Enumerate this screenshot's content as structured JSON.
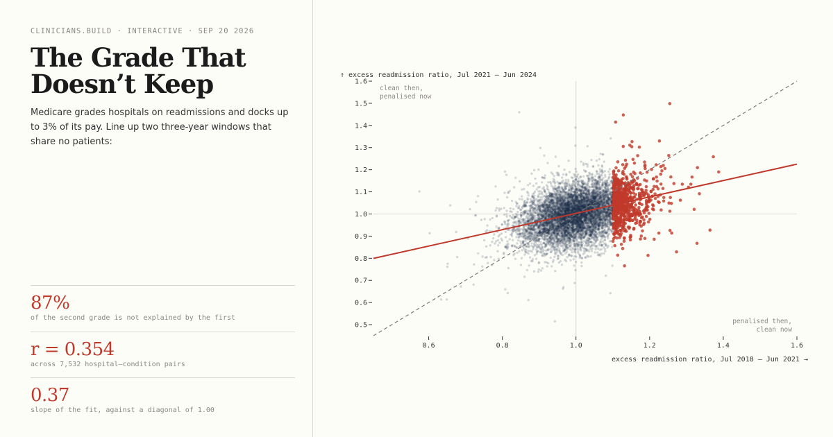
{
  "header": {
    "kicker": "CLINICIANS.BUILD · INTERACTIVE · SEP 20 2026",
    "title": "The Grade That Doesn’t Keep",
    "dek": "Medicare grades hospitals on readmissions and docks up to 3% of its pay. Line up two three-year windows that share no patients:"
  },
  "stats": [
    {
      "value": "87%",
      "caption": "of the second grade is not explained by the first"
    },
    {
      "value": "r = 0.354",
      "caption": "across 7,532 hospital–condition pairs"
    },
    {
      "value": "0.37",
      "caption": "slope of the fit, against a diagonal of 1.00"
    }
  ],
  "colors": {
    "accent": "#c0392b",
    "points": "#1c2e4a",
    "penalised": "#c0392b",
    "background": "#fdfdf7"
  },
  "chart_data": {
    "type": "scatter",
    "xlabel": "excess readmission ratio, Jul 2018 – Jun 2021 →",
    "ylabel": "↑ excess readmission ratio, Jul 2021 – Jun 2024",
    "xlim": [
      0.45,
      1.6
    ],
    "ylim": [
      0.45,
      1.6
    ],
    "xticks": [
      "0.6",
      "0.8",
      "1.0",
      "1.2",
      "1.4",
      "1.6"
    ],
    "yticks": [
      "0.5",
      "0.6",
      "0.7",
      "0.8",
      "0.9",
      "1.0",
      "1.1",
      "1.2",
      "1.3",
      "1.4",
      "1.5",
      "1.6"
    ],
    "n_points": 7532,
    "correlation": 0.354,
    "penalty_threshold_x": 1.1,
    "fit": {
      "slope": 0.37,
      "intercept": 0.633
    },
    "diagonal": {
      "slope": 1.0,
      "intercept": 0.0
    },
    "reference_lines": {
      "x": 1.0,
      "y": 1.0
    },
    "annotations": [
      {
        "text_lines": [
          "clean then,",
          "penalised now"
        ],
        "corner": "top-left"
      },
      {
        "text_lines": [
          "penalised then,",
          "clean now"
        ],
        "corner": "bottom-right"
      }
    ],
    "center": {
      "x": 1.0,
      "y": 1.0
    },
    "spread": {
      "x": 0.075,
      "y": 0.075
    }
  }
}
